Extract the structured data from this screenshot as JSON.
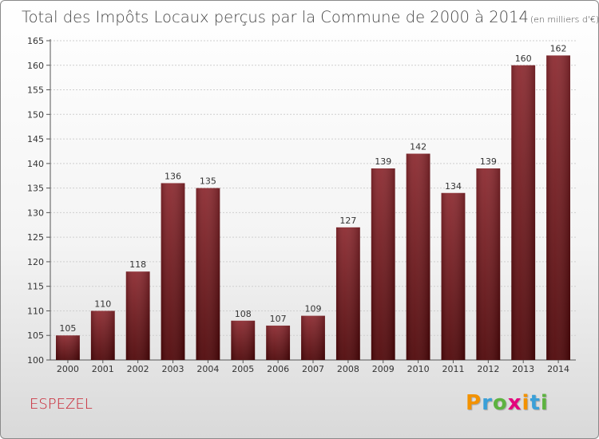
{
  "chart_data": {
    "type": "bar",
    "title": "Total des Impôts Locaux perçus par la Commune de 2000 à 2014",
    "subtitle": "(en milliers d'€)",
    "categories": [
      "2000",
      "2001",
      "2002",
      "2003",
      "2004",
      "2005",
      "2006",
      "2007",
      "2008",
      "2009",
      "2010",
      "2011",
      "2012",
      "2013",
      "2014"
    ],
    "values": [
      105,
      110,
      118,
      136,
      135,
      108,
      107,
      109,
      127,
      139,
      142,
      134,
      139,
      160,
      162
    ],
    "value_labels": [
      "105",
      "110",
      "118",
      "136",
      "135",
      "108",
      "107",
      "109",
      "127",
      "139",
      "142",
      "134",
      "139",
      "160",
      "162"
    ],
    "ylim": [
      100,
      165
    ],
    "yticks": [
      "100",
      "105",
      "110",
      "115",
      "120",
      "125",
      "130",
      "135",
      "140",
      "145",
      "150",
      "155",
      "160",
      "165"
    ],
    "bar_color": "#7a1a1f",
    "xlabel": "",
    "ylabel": ""
  },
  "footer": {
    "commune": "ESPEZEL",
    "logo_letters": [
      "P",
      "r",
      "o",
      "x",
      "i",
      "t",
      "i"
    ],
    "logo_colors": [
      "#f39200",
      "#3aa0d8",
      "#5db340",
      "#e4007d",
      "#f39200",
      "#3aa0d8",
      "#5db340"
    ]
  }
}
